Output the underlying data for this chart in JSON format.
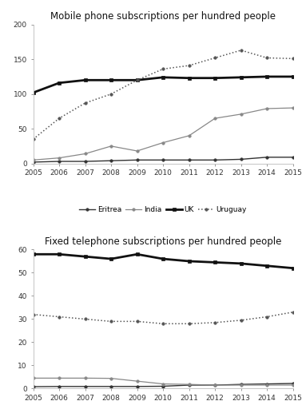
{
  "years": [
    2005,
    2006,
    2007,
    2008,
    2009,
    2010,
    2011,
    2012,
    2013,
    2014,
    2015
  ],
  "mobile": {
    "title": "Mobile phone subscriptions per hundred people",
    "ylim": [
      0,
      200
    ],
    "yticks": [
      0,
      50,
      100,
      150,
      200
    ],
    "Eritrea": [
      2,
      3,
      3,
      4,
      5,
      5,
      5,
      5,
      6,
      9,
      9
    ],
    "India": [
      5,
      8,
      14,
      25,
      18,
      30,
      40,
      65,
      71,
      79,
      80
    ],
    "UK": [
      102,
      116,
      120,
      120,
      120,
      124,
      123,
      123,
      124,
      125,
      125
    ],
    "Uruguay": [
      35,
      65,
      87,
      100,
      120,
      136,
      141,
      152,
      163,
      152,
      151
    ]
  },
  "fixed": {
    "title": "Fixed telephone subscriptions per hundred people",
    "ylim": [
      0,
      60
    ],
    "yticks": [
      0,
      10,
      20,
      30,
      40,
      50,
      60
    ],
    "Eritrea": [
      0.8,
      0.9,
      0.9,
      0.9,
      0.9,
      1.0,
      1.5,
      1.5,
      1.8,
      2.0,
      2.2
    ],
    "India": [
      4.5,
      4.5,
      4.5,
      4.4,
      3.2,
      2.0,
      1.8,
      1.5,
      1.5,
      1.5,
      1.5
    ],
    "UK": [
      58,
      58,
      57,
      56,
      58,
      56,
      55,
      54.5,
      54,
      53,
      52
    ],
    "Uruguay": [
      32,
      31,
      30,
      29,
      29,
      28,
      28,
      28.5,
      29.5,
      31,
      33
    ]
  },
  "line_styles": {
    "Eritrea": {
      "color": "#333333",
      "linestyle": "-",
      "marker": "o",
      "linewidth": 1.0,
      "markersize": 2.5,
      "markerfacecolor": "#333333"
    },
    "India": {
      "color": "#888888",
      "linestyle": "-",
      "marker": "o",
      "linewidth": 0.9,
      "markersize": 2.5,
      "markerfacecolor": "#888888"
    },
    "UK": {
      "color": "#111111",
      "linestyle": "-",
      "marker": "s",
      "linewidth": 2.0,
      "markersize": 3.5,
      "markerfacecolor": "#111111"
    },
    "Uruguay": {
      "color": "#555555",
      "linestyle": ":",
      "marker": "o",
      "linewidth": 1.1,
      "markersize": 2.5,
      "markerfacecolor": "#555555"
    }
  },
  "legend_order": [
    "Eritrea",
    "India",
    "UK",
    "Uruguay"
  ],
  "bg_color": "#ffffff",
  "title_fontsize": 8.5,
  "tick_fontsize": 6.5,
  "legend_fontsize": 6.5
}
